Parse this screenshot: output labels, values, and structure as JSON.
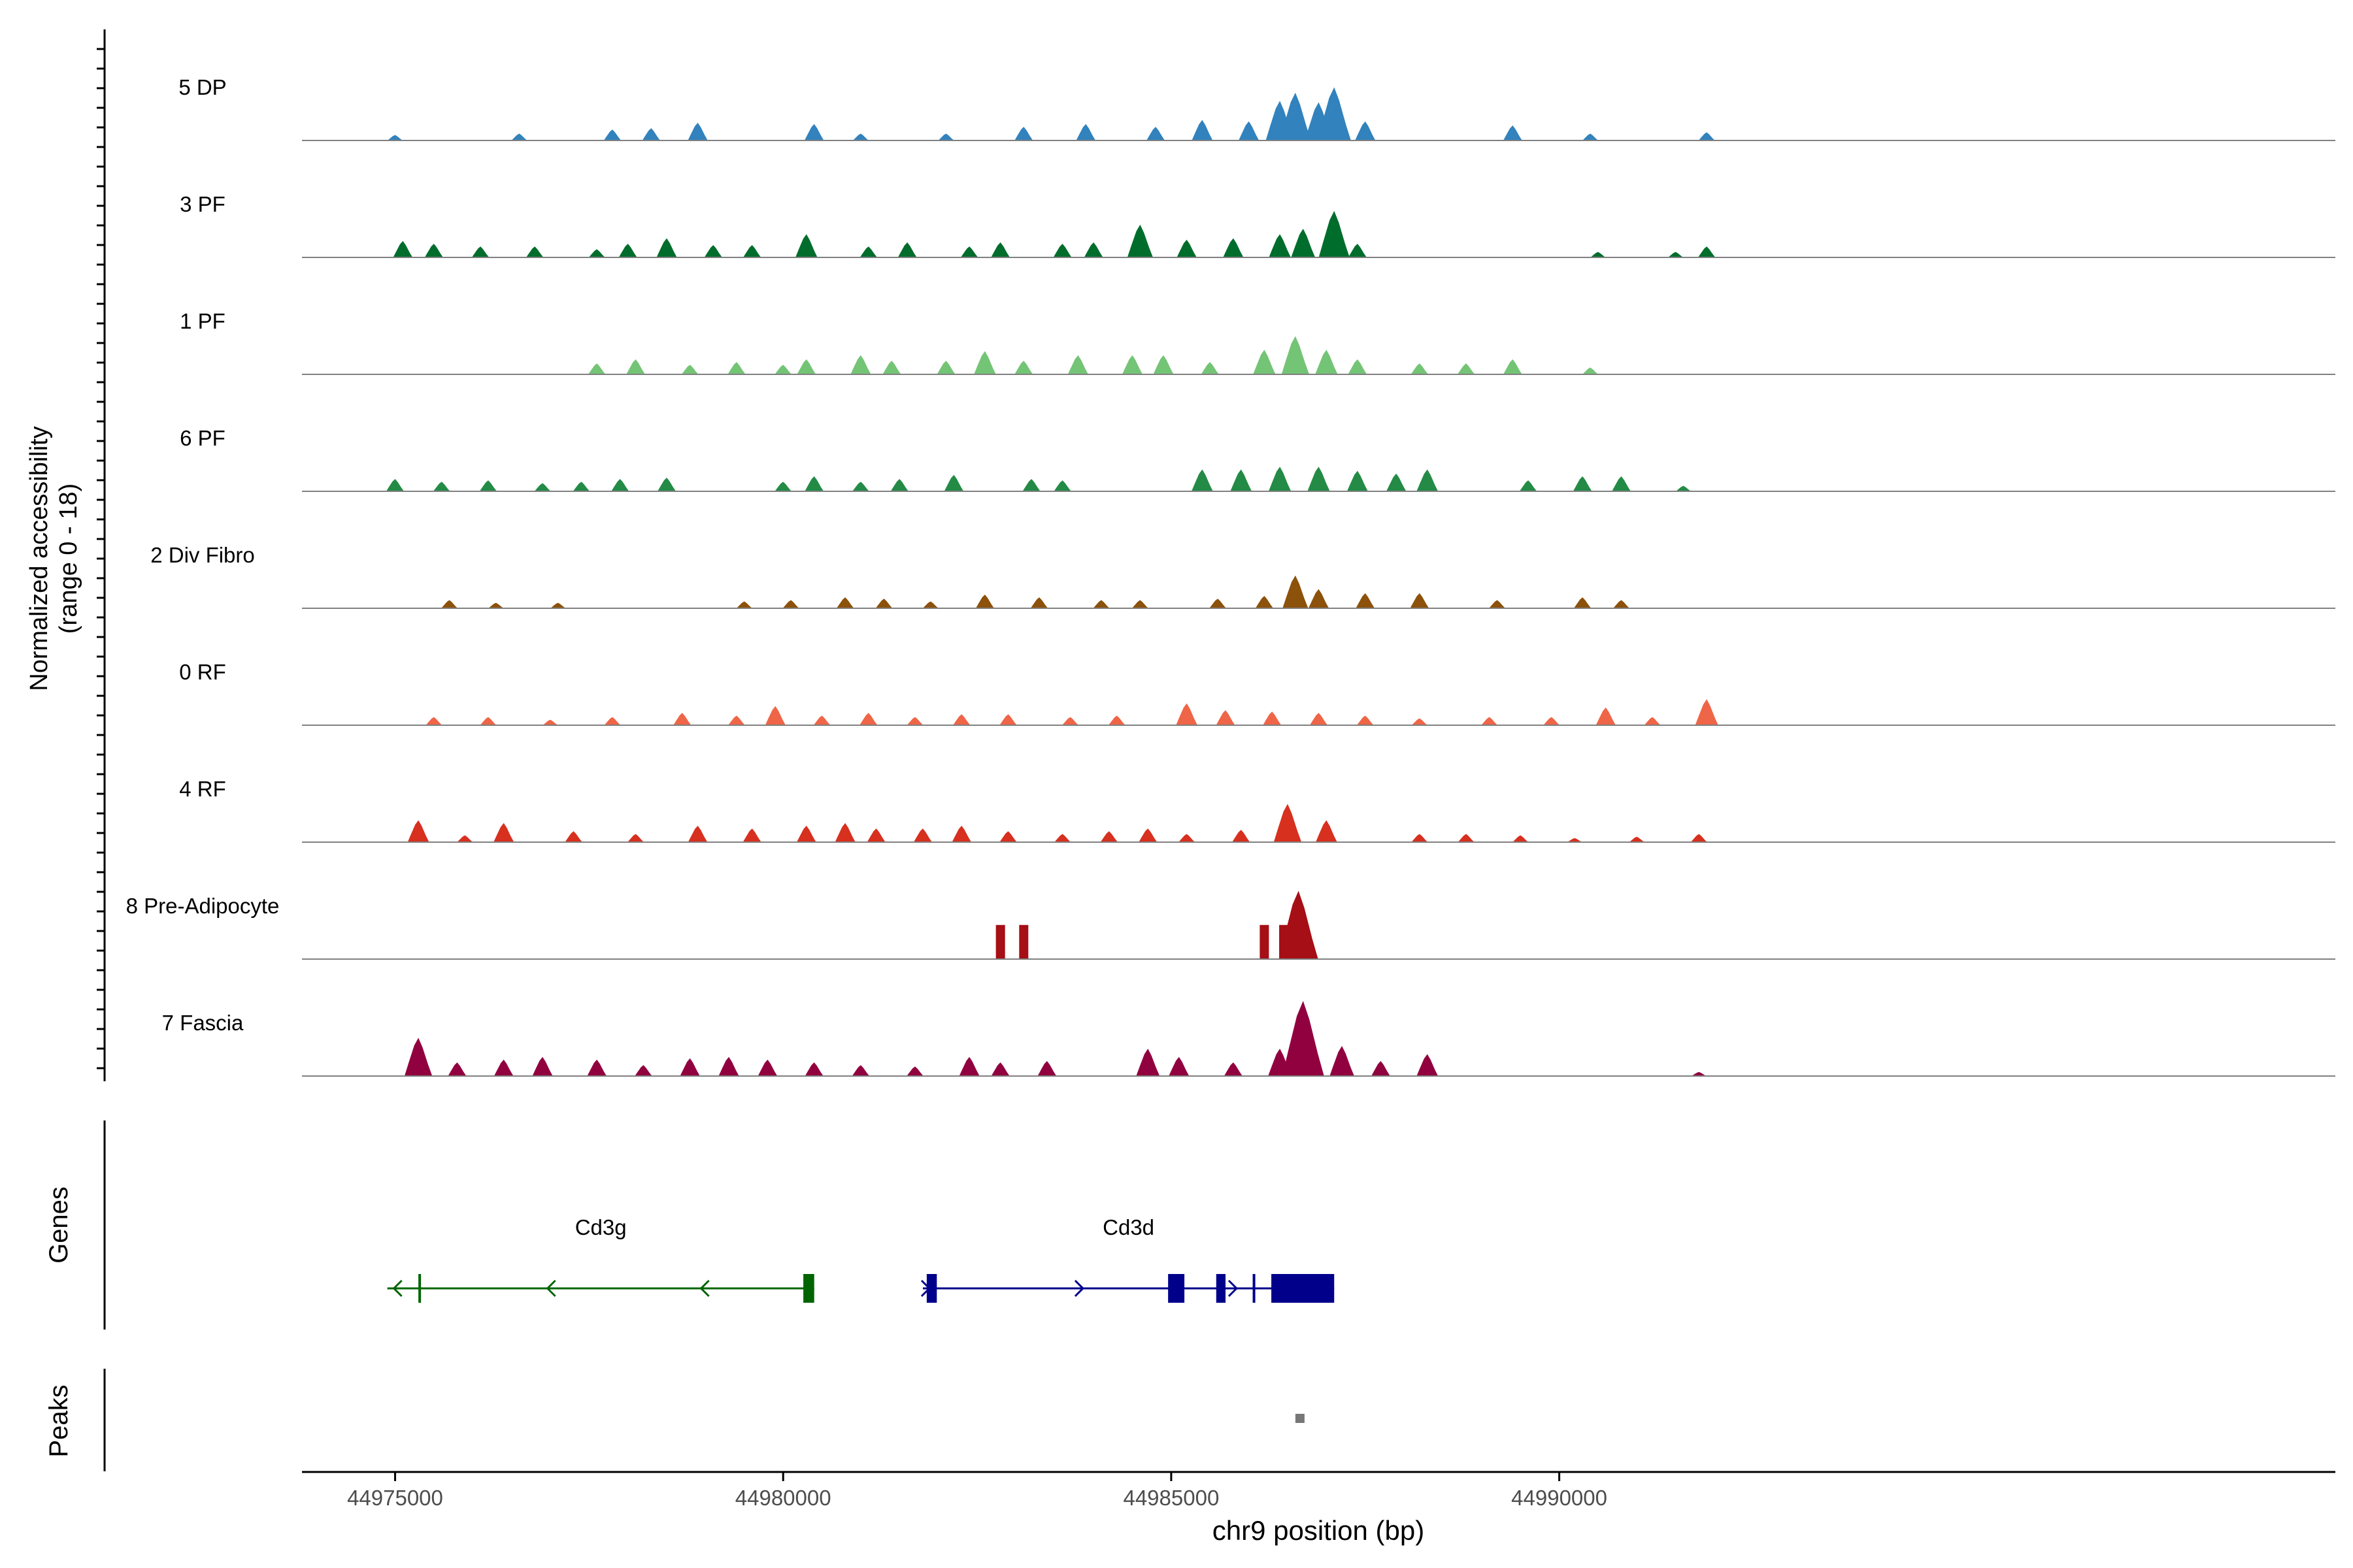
{
  "chart_data": {
    "type": "area",
    "title": "",
    "ylabel_line1": "Normalized accessibility",
    "ylabel_line2": "(range 0 - 18)",
    "xlabel": "chr9 position (bp)",
    "xlim": [
      44973800,
      45000000
    ],
    "ylim": [
      0,
      18
    ],
    "x_ticks": [
      44975000,
      44980000,
      44985000,
      44990000
    ],
    "x_tick_labels": [
      "44975000",
      "44980000",
      "44985000",
      "44990000"
    ],
    "genes_label": "Genes",
    "peaks_label": "Peaks",
    "series": [
      {
        "name": "5 DP",
        "color": "#3182bd",
        "peaks": [
          [
            44975000,
            4
          ],
          [
            44976600,
            5
          ],
          [
            44977800,
            8
          ],
          [
            44978300,
            9
          ],
          [
            44978900,
            13
          ],
          [
            44980400,
            12
          ],
          [
            44981000,
            5
          ],
          [
            44982100,
            5
          ],
          [
            44983100,
            10
          ],
          [
            44983900,
            12
          ],
          [
            44984800,
            10
          ],
          [
            44985400,
            15
          ],
          [
            44986000,
            14
          ],
          [
            44986400,
            29
          ],
          [
            44986600,
            35
          ],
          [
            44986900,
            28
          ],
          [
            44987100,
            39
          ],
          [
            44987500,
            14
          ],
          [
            44989400,
            11
          ],
          [
            44990400,
            5
          ],
          [
            44991900,
            6
          ]
        ]
      },
      {
        "name": "3 PF",
        "color": "#006d2c",
        "peaks": [
          [
            44975100,
            12
          ],
          [
            44975500,
            10
          ],
          [
            44976100,
            8
          ],
          [
            44976800,
            8
          ],
          [
            44977600,
            6
          ],
          [
            44978000,
            10
          ],
          [
            44978500,
            14
          ],
          [
            44979100,
            9
          ],
          [
            44979600,
            9
          ],
          [
            44980300,
            17
          ],
          [
            44981100,
            8
          ],
          [
            44981600,
            11
          ],
          [
            44982400,
            8
          ],
          [
            44982800,
            11
          ],
          [
            44983600,
            10
          ],
          [
            44984000,
            11
          ],
          [
            44984600,
            24
          ],
          [
            44985200,
            13
          ],
          [
            44985800,
            14
          ],
          [
            44986400,
            17
          ],
          [
            44986700,
            21
          ],
          [
            44987100,
            34
          ],
          [
            44987400,
            10
          ],
          [
            44990500,
            4
          ],
          [
            44991500,
            4
          ],
          [
            44991900,
            8
          ]
        ]
      },
      {
        "name": "1 PF",
        "color": "#74c476",
        "peaks": [
          [
            44977600,
            8
          ],
          [
            44978100,
            11
          ],
          [
            44978800,
            7
          ],
          [
            44979400,
            9
          ],
          [
            44980000,
            7
          ],
          [
            44980300,
            11
          ],
          [
            44981000,
            14
          ],
          [
            44981400,
            10
          ],
          [
            44982100,
            10
          ],
          [
            44982600,
            17
          ],
          [
            44983100,
            10
          ],
          [
            44983800,
            14
          ],
          [
            44984500,
            14
          ],
          [
            44984900,
            14
          ],
          [
            44985500,
            9
          ],
          [
            44986200,
            18
          ],
          [
            44986600,
            28
          ],
          [
            44987000,
            18
          ],
          [
            44987400,
            11
          ],
          [
            44988200,
            8
          ],
          [
            44988800,
            8
          ],
          [
            44989400,
            11
          ],
          [
            44990400,
            5
          ]
        ]
      },
      {
        "name": "6 PF",
        "color": "#238b45",
        "peaks": [
          [
            44975000,
            9
          ],
          [
            44975600,
            7
          ],
          [
            44976200,
            8
          ],
          [
            44976900,
            6
          ],
          [
            44977400,
            7
          ],
          [
            44977900,
            9
          ],
          [
            44978500,
            10
          ],
          [
            44980000,
            7
          ],
          [
            44980400,
            11
          ],
          [
            44981000,
            7
          ],
          [
            44981500,
            9
          ],
          [
            44982200,
            12
          ],
          [
            44983200,
            9
          ],
          [
            44983600,
            8
          ],
          [
            44985400,
            16
          ],
          [
            44985900,
            16
          ],
          [
            44986400,
            18
          ],
          [
            44986900,
            18
          ],
          [
            44987400,
            15
          ],
          [
            44987900,
            13
          ],
          [
            44988300,
            16
          ],
          [
            44989600,
            8
          ],
          [
            44990300,
            11
          ],
          [
            44990800,
            11
          ],
          [
            44991600,
            4
          ]
        ]
      },
      {
        "name": "2 Div Fibro",
        "color": "#8c510a",
        "peaks": [
          [
            44975700,
            6
          ],
          [
            44976300,
            4
          ],
          [
            44977100,
            4
          ],
          [
            44979500,
            5
          ],
          [
            44980100,
            6
          ],
          [
            44980800,
            8
          ],
          [
            44981300,
            7
          ],
          [
            44981900,
            5
          ],
          [
            44982600,
            10
          ],
          [
            44983300,
            8
          ],
          [
            44984100,
            6
          ],
          [
            44984600,
            6
          ],
          [
            44985600,
            7
          ],
          [
            44986200,
            9
          ],
          [
            44986600,
            24
          ],
          [
            44986900,
            14
          ],
          [
            44987500,
            11
          ],
          [
            44988200,
            11
          ],
          [
            44989200,
            6
          ],
          [
            44990300,
            8
          ],
          [
            44990800,
            6
          ]
        ]
      },
      {
        "name": "0 RF",
        "color": "#ef6548",
        "peaks": [
          [
            44975500,
            6
          ],
          [
            44976200,
            6
          ],
          [
            44977000,
            4
          ],
          [
            44977800,
            6
          ],
          [
            44978700,
            9
          ],
          [
            44979400,
            7
          ],
          [
            44979900,
            14
          ],
          [
            44980500,
            7
          ],
          [
            44981100,
            9
          ],
          [
            44981700,
            6
          ],
          [
            44982300,
            8
          ],
          [
            44982900,
            8
          ],
          [
            44983700,
            6
          ],
          [
            44984300,
            7
          ],
          [
            44985200,
            16
          ],
          [
            44985700,
            11
          ],
          [
            44986300,
            10
          ],
          [
            44986900,
            9
          ],
          [
            44987500,
            7
          ],
          [
            44988200,
            5
          ],
          [
            44989100,
            6
          ],
          [
            44989900,
            6
          ],
          [
            44990600,
            13
          ],
          [
            44991200,
            6
          ],
          [
            44991900,
            19
          ]
        ]
      },
      {
        "name": "4 RF",
        "color": "#d7301f",
        "peaks": [
          [
            44975300,
            16
          ],
          [
            44975900,
            5
          ],
          [
            44976400,
            14
          ],
          [
            44977300,
            8
          ],
          [
            44978100,
            6
          ],
          [
            44978900,
            12
          ],
          [
            44979600,
            10
          ],
          [
            44980300,
            12
          ],
          [
            44980800,
            14
          ],
          [
            44981200,
            10
          ],
          [
            44981800,
            10
          ],
          [
            44982300,
            12
          ],
          [
            44982900,
            8
          ],
          [
            44983600,
            6
          ],
          [
            44984200,
            8
          ],
          [
            44984700,
            10
          ],
          [
            44985200,
            6
          ],
          [
            44985900,
            9
          ],
          [
            44986500,
            28
          ],
          [
            44987000,
            16
          ],
          [
            44988200,
            6
          ],
          [
            44988800,
            6
          ],
          [
            44989500,
            5
          ],
          [
            44990200,
            3
          ],
          [
            44991000,
            4
          ],
          [
            44991800,
            6
          ]
        ]
      },
      {
        "name": "8 Pre-Adipocyte",
        "color": "#a50f15",
        "peaks": [
          [
            44982800,
            25
          ],
          [
            44983100,
            25
          ],
          [
            44986200,
            25
          ],
          [
            44986450,
            25
          ],
          [
            44986640,
            50
          ]
        ]
      },
      {
        "name": "7 Fascia",
        "color": "#91003f",
        "peaks": [
          [
            44975300,
            28
          ],
          [
            44975800,
            10
          ],
          [
            44976400,
            12
          ],
          [
            44976900,
            14
          ],
          [
            44977600,
            12
          ],
          [
            44978200,
            8
          ],
          [
            44978800,
            13
          ],
          [
            44979300,
            14
          ],
          [
            44979800,
            12
          ],
          [
            44980400,
            10
          ],
          [
            44981000,
            8
          ],
          [
            44981700,
            7
          ],
          [
            44982400,
            14
          ],
          [
            44982800,
            10
          ],
          [
            44983400,
            11
          ],
          [
            44984700,
            20
          ],
          [
            44985100,
            14
          ],
          [
            44985800,
            10
          ],
          [
            44986400,
            20
          ],
          [
            44986700,
            55
          ],
          [
            44987200,
            22
          ],
          [
            44987700,
            11
          ],
          [
            44988300,
            16
          ],
          [
            44991800,
            3
          ]
        ]
      }
    ],
    "genes": [
      {
        "name": "Cd3g",
        "strand": "-",
        "color": "#006400",
        "start": 44974900,
        "end": 44980400,
        "exons": [
          [
            44975300,
            44975320
          ],
          [
            44980260,
            44980400
          ]
        ]
      },
      {
        "name": "Cd3d",
        "strand": "+",
        "color": "#00008b",
        "start": 44981800,
        "end": 44987100,
        "exons": [
          [
            44981850,
            44981980
          ],
          [
            44984960,
            44985170
          ],
          [
            44985580,
            44985700
          ],
          [
            44986050,
            44986070
          ],
          [
            44986290,
            44987100
          ]
        ]
      }
    ],
    "peaks_track": [
      {
        "start": 44986600,
        "end": 44986660,
        "color": "#777777"
      }
    ]
  }
}
